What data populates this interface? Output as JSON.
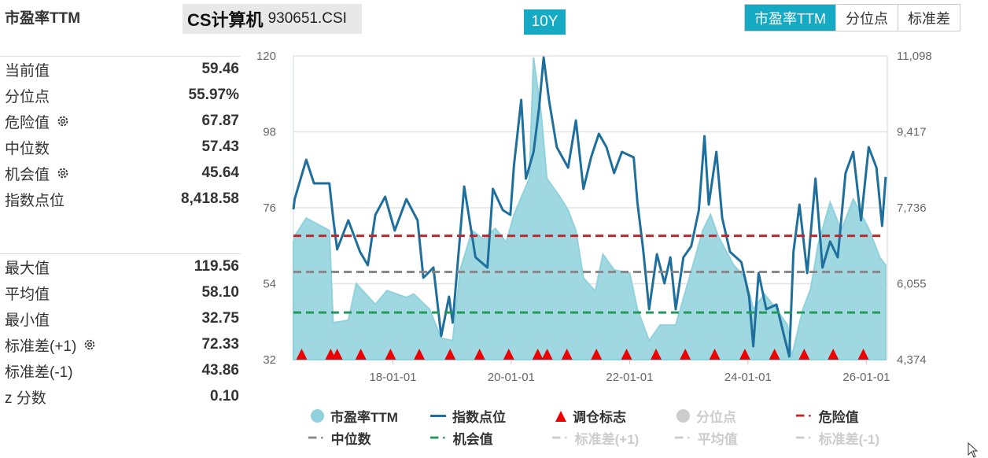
{
  "header": {
    "title": "市盈率TTM",
    "index_name": "CS计算机",
    "index_code": "930651.CSI",
    "range": "10Y",
    "tabs": [
      {
        "label": "市盈率TTM",
        "active": true
      },
      {
        "label": "分位点",
        "active": false
      },
      {
        "label": "标准差",
        "active": false
      }
    ]
  },
  "stats": {
    "group1": [
      {
        "label": "当前值",
        "value": "59.46",
        "gear": false
      },
      {
        "label": "分位点",
        "value": "55.97%",
        "gear": false
      },
      {
        "label": "危险值",
        "value": "67.87",
        "gear": true
      },
      {
        "label": "中位数",
        "value": "57.43",
        "gear": false
      },
      {
        "label": "机会值",
        "value": "45.64",
        "gear": true
      },
      {
        "label": "指数点位",
        "value": "8,418.58",
        "gear": false
      }
    ],
    "group2": [
      {
        "label": "最大值",
        "value": "119.56",
        "gear": false
      },
      {
        "label": "平均值",
        "value": "58.10",
        "gear": false
      },
      {
        "label": "最小值",
        "value": "32.75",
        "gear": false
      },
      {
        "label": "标准差(+1)",
        "value": "72.33",
        "gear": true
      },
      {
        "label": "标准差(-1)",
        "value": "43.86",
        "gear": false
      },
      {
        "label": "z 分数",
        "value": "0.10",
        "gear": false
      }
    ]
  },
  "chart_data": {
    "type": "area",
    "xlim": [
      "2016-04-27",
      "2026-05-10"
    ],
    "ylim_left": [
      32,
      120
    ],
    "ylim_right": [
      4374,
      11098
    ],
    "yticks_left": [
      "120",
      "98",
      "76",
      "54",
      "32"
    ],
    "yticks_right": [
      "11,098",
      "9,417",
      "7,736",
      "6,055",
      "4,374"
    ],
    "xticks": [
      {
        "date": "2018-01-01",
        "label": "18-01-01"
      },
      {
        "date": "2020-01-01",
        "label": "20-01-01"
      },
      {
        "date": "2022-01-01",
        "label": "22-01-01"
      },
      {
        "date": "2024-01-01",
        "label": "24-01-01"
      },
      {
        "date": "2026-01-01",
        "label": "26-01-01"
      }
    ],
    "colors": {
      "pe": "#8fd1dc",
      "index": "#1f6f9c",
      "marker": "#ee0000",
      "danger": "#c0272d",
      "median": "#888888",
      "opportunity": "#22995a",
      "grid": "#e3e3e3"
    },
    "reference_lines": {
      "danger": 67.87,
      "median": 57.43,
      "opportunity": 45.64
    },
    "pe_ttm": [
      [
        "2016-04-27",
        66
      ],
      [
        "2016-05-05",
        67.8
      ],
      [
        "2016-07-15",
        73
      ],
      [
        "2016-12-05",
        69.4
      ],
      [
        "2016-12-28",
        42.7
      ],
      [
        "2017-04-01",
        43.4
      ],
      [
        "2017-05-20",
        54
      ],
      [
        "2017-09-15",
        48
      ],
      [
        "2017-11-25",
        52
      ],
      [
        "2018-03-25",
        50
      ],
      [
        "2018-05-10",
        51
      ],
      [
        "2018-08-15",
        46.6
      ],
      [
        "2018-10-26",
        38.2
      ],
      [
        "2019-01-05",
        37.5
      ],
      [
        "2019-02-20",
        58
      ],
      [
        "2019-05-05",
        69.4
      ],
      [
        "2019-07-12",
        67
      ],
      [
        "2019-09-25",
        70
      ],
      [
        "2019-12-01",
        66
      ],
      [
        "2020-01-18",
        74
      ],
      [
        "2020-04-22",
        84.5
      ],
      [
        "2020-05-18",
        119.5
      ],
      [
        "2020-07-05",
        102.7
      ],
      [
        "2020-08-08",
        84.5
      ],
      [
        "2020-10-30",
        79
      ],
      [
        "2020-12-17",
        75.3
      ],
      [
        "2021-02-03",
        69.4
      ],
      [
        "2021-03-22",
        55.7
      ],
      [
        "2021-06-03",
        51.8
      ],
      [
        "2021-07-20",
        62.5
      ],
      [
        "2021-09-27",
        58
      ],
      [
        "2022-01-01",
        57
      ],
      [
        "2022-02-18",
        46.6
      ],
      [
        "2022-05-01",
        37.5
      ],
      [
        "2022-07-08",
        42
      ],
      [
        "2022-10-12",
        42
      ],
      [
        "2022-12-25",
        54
      ],
      [
        "2023-03-28",
        69.4
      ],
      [
        "2023-05-15",
        74
      ],
      [
        "2023-07-01",
        67.8
      ],
      [
        "2023-10-05",
        59.4
      ],
      [
        "2023-12-17",
        55.7
      ],
      [
        "2024-02-03",
        46.6
      ],
      [
        "2024-04-12",
        51
      ],
      [
        "2024-06-25",
        46.6
      ],
      [
        "2024-09-01",
        42
      ],
      [
        "2024-09-27",
        32.9
      ],
      [
        "2024-12-05",
        46.6
      ],
      [
        "2025-01-22",
        52.5
      ],
      [
        "2025-03-10",
        65.5
      ],
      [
        "2025-05-22",
        77.6
      ],
      [
        "2025-07-30",
        69.4
      ],
      [
        "2025-10-12",
        78.5
      ],
      [
        "2026-01-15",
        70
      ],
      [
        "2026-03-25",
        61.6
      ],
      [
        "2026-04-30",
        59.46
      ]
    ],
    "index_points": [
      [
        "2016-04-27",
        7700
      ],
      [
        "2016-05-05",
        7928
      ],
      [
        "2016-07-15",
        8799
      ],
      [
        "2016-09-01",
        8276
      ],
      [
        "2016-12-05",
        8276
      ],
      [
        "2016-12-28",
        7510
      ],
      [
        "2017-01-22",
        6813
      ],
      [
        "2017-04-01",
        7457
      ],
      [
        "2017-06-12",
        6760
      ],
      [
        "2017-07-30",
        6464
      ],
      [
        "2017-09-15",
        7579
      ],
      [
        "2017-11-14",
        7980
      ],
      [
        "2018-01-12",
        7231
      ],
      [
        "2018-03-25",
        7928
      ],
      [
        "2018-06-02",
        7457
      ],
      [
        "2018-07-08",
        6186
      ],
      [
        "2018-09-08",
        6412
      ],
      [
        "2018-10-26",
        4897
      ],
      [
        "2018-12-13",
        5768
      ],
      [
        "2019-01-05",
        5193
      ],
      [
        "2019-03-17",
        8206
      ],
      [
        "2019-05-26",
        6638
      ],
      [
        "2019-08-07",
        6412
      ],
      [
        "2019-09-10",
        8154
      ],
      [
        "2019-11-10",
        7684
      ],
      [
        "2019-12-27",
        7579
      ],
      [
        "2020-01-18",
        8677
      ],
      [
        "2020-03-03",
        10122
      ],
      [
        "2020-04-01",
        8380
      ],
      [
        "2020-05-18",
        8973
      ],
      [
        "2020-06-21",
        9948
      ],
      [
        "2020-07-19",
        11063
      ],
      [
        "2020-08-21",
        10122
      ],
      [
        "2020-10-08",
        9077
      ],
      [
        "2020-12-17",
        8624
      ],
      [
        "2021-02-03",
        9670
      ],
      [
        "2021-03-22",
        8154
      ],
      [
        "2021-05-08",
        8851
      ],
      [
        "2021-06-25",
        9374
      ],
      [
        "2021-08-11",
        9077
      ],
      [
        "2021-09-27",
        8502
      ],
      [
        "2021-11-14",
        8973
      ],
      [
        "2022-01-26",
        8851
      ],
      [
        "2022-02-18",
        7858
      ],
      [
        "2022-03-25",
        6813
      ],
      [
        "2022-05-01",
        5489
      ],
      [
        "2022-06-18",
        6708
      ],
      [
        "2022-08-04",
        6064
      ],
      [
        "2022-09-09",
        6638
      ],
      [
        "2022-10-12",
        5489
      ],
      [
        "2022-11-29",
        6638
      ],
      [
        "2023-01-16",
        6882
      ],
      [
        "2023-03-04",
        7684
      ],
      [
        "2023-04-08",
        9321
      ],
      [
        "2023-05-04",
        7806
      ],
      [
        "2023-06-20",
        8973
      ],
      [
        "2023-07-26",
        7510
      ],
      [
        "2023-09-12",
        6760
      ],
      [
        "2023-11-21",
        6534
      ],
      [
        "2024-01-08",
        5768
      ],
      [
        "2024-02-03",
        4671
      ],
      [
        "2024-03-07",
        6290
      ],
      [
        "2024-04-23",
        5489
      ],
      [
        "2024-06-25",
        5594
      ],
      [
        "2024-08-11",
        4897
      ],
      [
        "2024-09-12",
        4444
      ],
      [
        "2024-10-08",
        6760
      ],
      [
        "2024-11-14",
        7806
      ],
      [
        "2025-01-01",
        6290
      ],
      [
        "2025-02-21",
        8380
      ],
      [
        "2025-04-05",
        6412
      ],
      [
        "2025-05-22",
        6987
      ],
      [
        "2025-07-08",
        6638
      ],
      [
        "2025-08-25",
        8502
      ],
      [
        "2025-10-12",
        8973
      ],
      [
        "2025-11-29",
        7457
      ],
      [
        "2026-01-15",
        9077
      ],
      [
        "2026-03-04",
        8624
      ],
      [
        "2026-04-08",
        7336
      ],
      [
        "2026-04-30",
        8418.58
      ]
    ],
    "rebalance_markers": [
      "2016-06-17",
      "2016-12-13",
      "2017-01-22",
      "2017-06-17",
      "2017-12-17",
      "2018-06-13",
      "2018-12-20",
      "2019-06-20",
      "2019-12-17",
      "2020-06-13",
      "2020-08-10",
      "2020-12-10",
      "2021-06-10",
      "2021-12-13",
      "2022-06-13",
      "2022-12-10",
      "2023-06-10",
      "2023-12-13",
      "2024-06-13",
      "2024-12-13",
      "2025-06-10",
      "2025-12-13"
    ],
    "legend": [
      {
        "label": "市盈率TTM",
        "symbol": "circle",
        "color": "#8fd1dc",
        "enabled": true
      },
      {
        "label": "指数点位",
        "symbol": "line",
        "color": "#1f6f9c",
        "enabled": true
      },
      {
        "label": "调仓标志",
        "symbol": "triangle",
        "color": "#ee0000",
        "enabled": true
      },
      {
        "label": "分位点",
        "symbol": "circle",
        "color": "#cccccc",
        "enabled": false
      },
      {
        "label": "危险值",
        "symbol": "dash",
        "color": "#c0272d",
        "enabled": true
      },
      {
        "label": "中位数",
        "symbol": "dash",
        "color": "#888888",
        "enabled": true
      },
      {
        "label": "机会值",
        "symbol": "dash",
        "color": "#22995a",
        "enabled": true
      },
      {
        "label": "标准差(+1)",
        "symbol": "dash",
        "color": "#cccccc",
        "enabled": false
      },
      {
        "label": "平均值",
        "symbol": "dash",
        "color": "#cccccc",
        "enabled": false
      },
      {
        "label": "标准差(-1)",
        "symbol": "dash",
        "color": "#cccccc",
        "enabled": false
      }
    ]
  }
}
